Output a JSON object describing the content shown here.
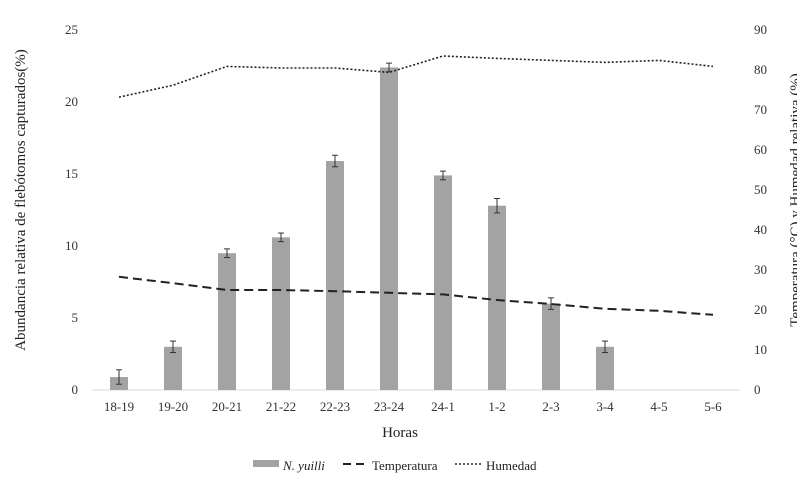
{
  "chart_data": {
    "type": "bar",
    "categories": [
      "18-19",
      "19-20",
      "20-21",
      "21-22",
      "22-23",
      "23-24",
      "24-1",
      "1-2",
      "2-3",
      "3-4",
      "4-5",
      "5-6"
    ],
    "xlabel": "Horas",
    "ylabel_left": "Abundancia relativa de flebótomos capturados(%)",
    "ylabel_right": "Temperatura (°C) y Humedad relativa (%)",
    "ylim_left": [
      0,
      25
    ],
    "ylim_right": [
      0,
      90
    ],
    "yticks_left": [
      "0",
      "5",
      "10",
      "15",
      "20",
      "25"
    ],
    "yticks_right": [
      "0",
      "10",
      "20",
      "30",
      "40",
      "50",
      "60",
      "70",
      "80",
      "90"
    ],
    "grid": false,
    "legend_position": "bottom",
    "series": [
      {
        "name": "N. yuilli",
        "type": "bar",
        "axis": "left",
        "values": [
          0.9,
          3.0,
          9.5,
          10.6,
          15.9,
          22.4,
          14.9,
          12.8,
          6.0,
          3.0,
          null,
          null
        ],
        "errors": [
          0.5,
          0.4,
          0.3,
          0.3,
          0.4,
          0.3,
          0.3,
          0.5,
          0.4,
          0.4,
          null,
          null
        ],
        "color": "#a3a3a3"
      },
      {
        "name": "Temperatura",
        "type": "line",
        "axis": "right",
        "style": "dashed",
        "values": [
          28.3,
          26.7,
          25.0,
          25.0,
          24.7,
          24.3,
          23.9,
          22.5,
          21.5,
          20.3,
          19.8,
          18.8
        ],
        "color": "#222222"
      },
      {
        "name": "Humedad",
        "type": "line",
        "axis": "right",
        "style": "dotted",
        "values": [
          73.2,
          76.2,
          80.9,
          80.5,
          80.5,
          79.4,
          83.5,
          82.9,
          82.4,
          81.9,
          82.4,
          80.9
        ],
        "color": "#222222"
      }
    ]
  }
}
